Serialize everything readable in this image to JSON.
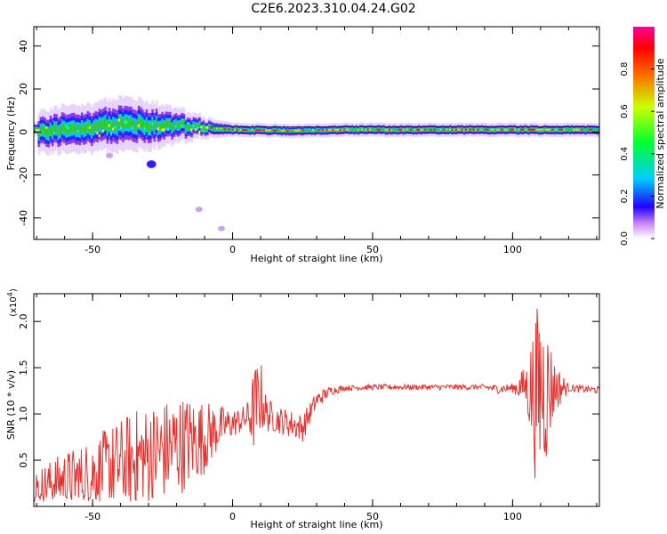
{
  "title": "C2E6.2023.310.04.24.G02",
  "colors": {
    "snr_line": "#e8322f",
    "band_core": "#33cc33",
    "band_peak": "#ff1a1a",
    "band_edge": "#2222ff",
    "band_halo": "#8a2be2"
  },
  "chart_data": [
    {
      "type": "heatmap",
      "xlabel": "Height of straight line (km)",
      "ylabel": "Frequency (Hz)",
      "xlim": [
        -71,
        131
      ],
      "ylim": [
        -50,
        49
      ],
      "xticks": [
        -50,
        0,
        50,
        100
      ],
      "xtick_labels": [
        "-50",
        "0",
        "50",
        "100"
      ],
      "yticks": [
        -40,
        -20,
        0,
        20,
        40
      ],
      "ytick_labels": [
        "-40",
        "-20",
        "0",
        "20",
        "40"
      ],
      "colorbar": {
        "label": "Normalized spectral amplitude",
        "range": [
          0,
          1
        ],
        "ticks": [
          0.0,
          0.2,
          0.4,
          0.6,
          0.8
        ],
        "tick_labels": [
          "0.0",
          "0.2",
          "0.4",
          "0.6",
          "0.8"
        ]
      },
      "band": [
        {
          "x": -70,
          "center": 0,
          "halfwidth": 6
        },
        {
          "x": -60,
          "center": 1,
          "halfwidth": 7
        },
        {
          "x": -50,
          "center": 2,
          "halfwidth": 7
        },
        {
          "x": -40,
          "center": 4,
          "halfwidth": 8
        },
        {
          "x": -30,
          "center": 3,
          "halfwidth": 7
        },
        {
          "x": -20,
          "center": 3,
          "halfwidth": 5
        },
        {
          "x": -10,
          "center": 2,
          "halfwidth": 3
        },
        {
          "x": 0,
          "center": 1,
          "halfwidth": 2
        },
        {
          "x": 20,
          "center": 0.5,
          "halfwidth": 2
        },
        {
          "x": 40,
          "center": 1,
          "halfwidth": 2
        },
        {
          "x": 60,
          "center": 1,
          "halfwidth": 2
        },
        {
          "x": 80,
          "center": 1,
          "halfwidth": 2
        },
        {
          "x": 100,
          "center": 1,
          "halfwidth": 2
        },
        {
          "x": 130,
          "center": 1,
          "halfwidth": 2
        }
      ],
      "blobs": [
        {
          "x": -29,
          "y": -15,
          "level": 0.25
        },
        {
          "x": -44,
          "y": -11,
          "level": 0.1
        },
        {
          "x": -12,
          "y": -36,
          "level": 0.05
        },
        {
          "x": -4,
          "y": -45,
          "level": 0.05
        }
      ]
    },
    {
      "type": "line",
      "xlabel": "Height of straight line (km)",
      "ylabel": "SNR (10 * v/v)",
      "y_multiplier": "(x10",
      "y_multiplier_exp": "4",
      "xlim": [
        -71,
        131
      ],
      "ylim": [
        0,
        23000
      ],
      "xticks": [
        -50,
        0,
        50,
        100
      ],
      "xtick_labels": [
        "-50",
        "0",
        "50",
        "100"
      ],
      "yticks": [
        5000,
        10000,
        15000,
        20000
      ],
      "ytick_labels": [
        "0.5",
        "1.0",
        "1.5",
        "2.0"
      ],
      "series": [
        {
          "x": [
            -70,
            -65,
            -60,
            -55,
            -50,
            -45,
            -40,
            -35,
            -30,
            -25,
            -20,
            -15,
            -10,
            -5,
            0,
            5,
            8,
            10,
            12,
            15,
            20,
            25,
            30,
            35,
            40,
            50,
            60,
            70,
            80,
            90,
            95,
            100,
            105,
            108,
            110,
            112,
            115,
            120,
            125,
            130
          ],
          "y": [
            2000,
            2500,
            3000,
            3000,
            3500,
            4000,
            4500,
            5000,
            5500,
            6000,
            6500,
            7000,
            7500,
            8500,
            9000,
            9500,
            10500,
            12000,
            10000,
            9500,
            9000,
            8500,
            11500,
            12500,
            12800,
            12900,
            12900,
            12900,
            12900,
            12900,
            12700,
            12800,
            13000,
            12000,
            13000,
            12500,
            12900,
            12800,
            12700,
            12600
          ],
          "amplitude": [
            2000,
            2500,
            3000,
            3500,
            4000,
            4500,
            5000,
            5500,
            5500,
            5500,
            5500,
            5000,
            4000,
            2500,
            1500,
            1500,
            5000,
            4000,
            2000,
            1500,
            1500,
            1500,
            1000,
            500,
            300,
            300,
            300,
            300,
            300,
            300,
            500,
            500,
            2500,
            9000,
            10000,
            8000,
            3000,
            400,
            400,
            400
          ]
        }
      ]
    }
  ]
}
